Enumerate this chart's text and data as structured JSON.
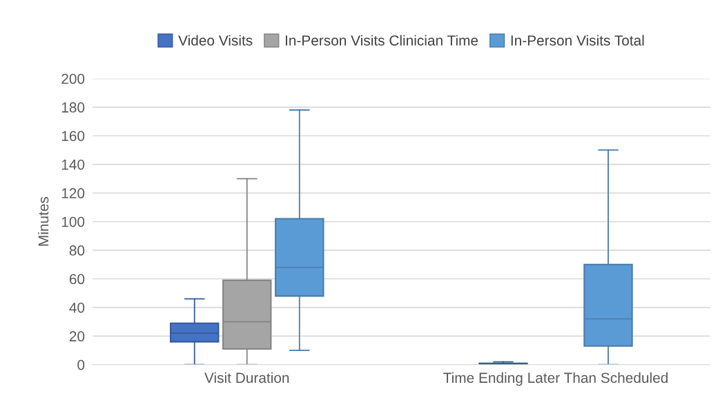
{
  "chart_data": {
    "type": "box",
    "ylabel": "Minutes",
    "categories": [
      "Visit Duration",
      "Time Ending Later Than Scheduled"
    ],
    "series": [
      {
        "name": "Video Visits",
        "color": "#4472c4",
        "boxes": [
          {
            "low": 0,
            "q1": 16,
            "median": 22,
            "q3": 29,
            "high": 46
          },
          {
            "low": 0,
            "q1": 0,
            "median": 0,
            "q3": 1,
            "high": 2
          }
        ]
      },
      {
        "name": "In-Person Visits Clinician Time",
        "color": "#a5a5a5",
        "boxes": [
          {
            "low": 0,
            "q1": 11,
            "median": 30,
            "q3": 59,
            "high": 130
          },
          null
        ]
      },
      {
        "name": "In-Person Visits Total",
        "color": "#5b9bd5",
        "boxes": [
          {
            "low": 10,
            "q1": 48,
            "median": 68,
            "q3": 102,
            "high": 178
          },
          {
            "low": 0,
            "q1": 13,
            "median": 32,
            "q3": 70,
            "high": 150
          }
        ]
      }
    ],
    "ylim": [
      0,
      200
    ],
    "yticks": [
      0,
      20,
      40,
      60,
      80,
      100,
      120,
      140,
      160,
      180,
      200
    ],
    "grid": "y",
    "legend": "top"
  }
}
